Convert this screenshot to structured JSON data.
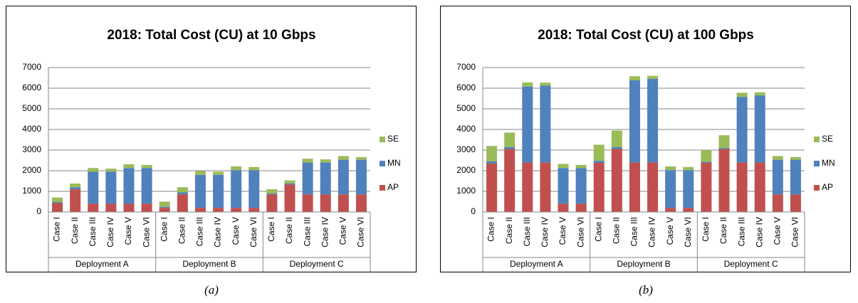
{
  "chart_data": [
    {
      "type": "bar",
      "stacked": true,
      "title": "2018: Total Cost (CU) at 10 Gbps",
      "caption": "(a)",
      "groups": [
        "Deployment A",
        "Deployment B",
        "Deployment C"
      ],
      "categories": [
        "Case I",
        "Case II",
        "Case III",
        "Case IV",
        "Case V",
        "Case VI",
        "Case I",
        "Case II",
        "Case III",
        "Case IV",
        "Case V",
        "Case VI",
        "Case I",
        "Case II",
        "Case III",
        "Case IV",
        "Case V",
        "Case VI"
      ],
      "series": [
        {
          "name": "AP",
          "color": "#c0504d",
          "values": [
            430,
            1100,
            400,
            400,
            400,
            400,
            200,
            850,
            200,
            200,
            200,
            200,
            850,
            1330,
            850,
            850,
            850,
            850
          ]
        },
        {
          "name": "MN",
          "color": "#4f81bd",
          "values": [
            50,
            100,
            1550,
            1550,
            1730,
            1730,
            50,
            100,
            1600,
            1600,
            1830,
            1830,
            50,
            50,
            1550,
            1550,
            1680,
            1680
          ]
        },
        {
          "name": "SE",
          "color": "#9bbb59",
          "values": [
            220,
            180,
            180,
            150,
            180,
            150,
            250,
            250,
            180,
            150,
            180,
            150,
            200,
            150,
            180,
            150,
            180,
            130
          ]
        }
      ],
      "ylim": [
        0,
        7000
      ],
      "yticks": [
        0,
        1000,
        2000,
        3000,
        4000,
        5000,
        6000,
        7000
      ],
      "grid": true,
      "legend": "right"
    },
    {
      "type": "bar",
      "stacked": true,
      "title": "2018: Total Cost (CU) at 100 Gbps",
      "caption": "(b)",
      "groups": [
        "Deployment A",
        "Deployment B",
        "Deployment C"
      ],
      "categories": [
        "Case I",
        "Case II",
        "Case III",
        "Case IV",
        "Case V",
        "Case VI",
        "Case I",
        "Case II",
        "Case III",
        "Case IV",
        "Case V",
        "Case VI",
        "Case I",
        "Case II",
        "Case III",
        "Case IV",
        "Case V",
        "Case VI"
      ],
      "series": [
        {
          "name": "AP",
          "color": "#c0504d",
          "values": [
            2350,
            3050,
            2400,
            2400,
            400,
            400,
            2380,
            3050,
            2400,
            2400,
            200,
            200,
            2380,
            3050,
            2400,
            2400,
            850,
            850
          ]
        },
        {
          "name": "MN",
          "color": "#4f81bd",
          "values": [
            100,
            100,
            3680,
            3720,
            1730,
            1730,
            100,
            100,
            3980,
            4050,
            1830,
            1830,
            50,
            50,
            3180,
            3250,
            1680,
            1680
          ]
        },
        {
          "name": "SE",
          "color": "#9bbb59",
          "values": [
            750,
            700,
            200,
            150,
            200,
            150,
            780,
            800,
            200,
            150,
            180,
            150,
            570,
            620,
            200,
            150,
            180,
            130
          ]
        }
      ],
      "ylim": [
        0,
        7000
      ],
      "yticks": [
        0,
        1000,
        2000,
        3000,
        4000,
        5000,
        6000,
        7000
      ],
      "grid": true,
      "legend": "right"
    }
  ]
}
